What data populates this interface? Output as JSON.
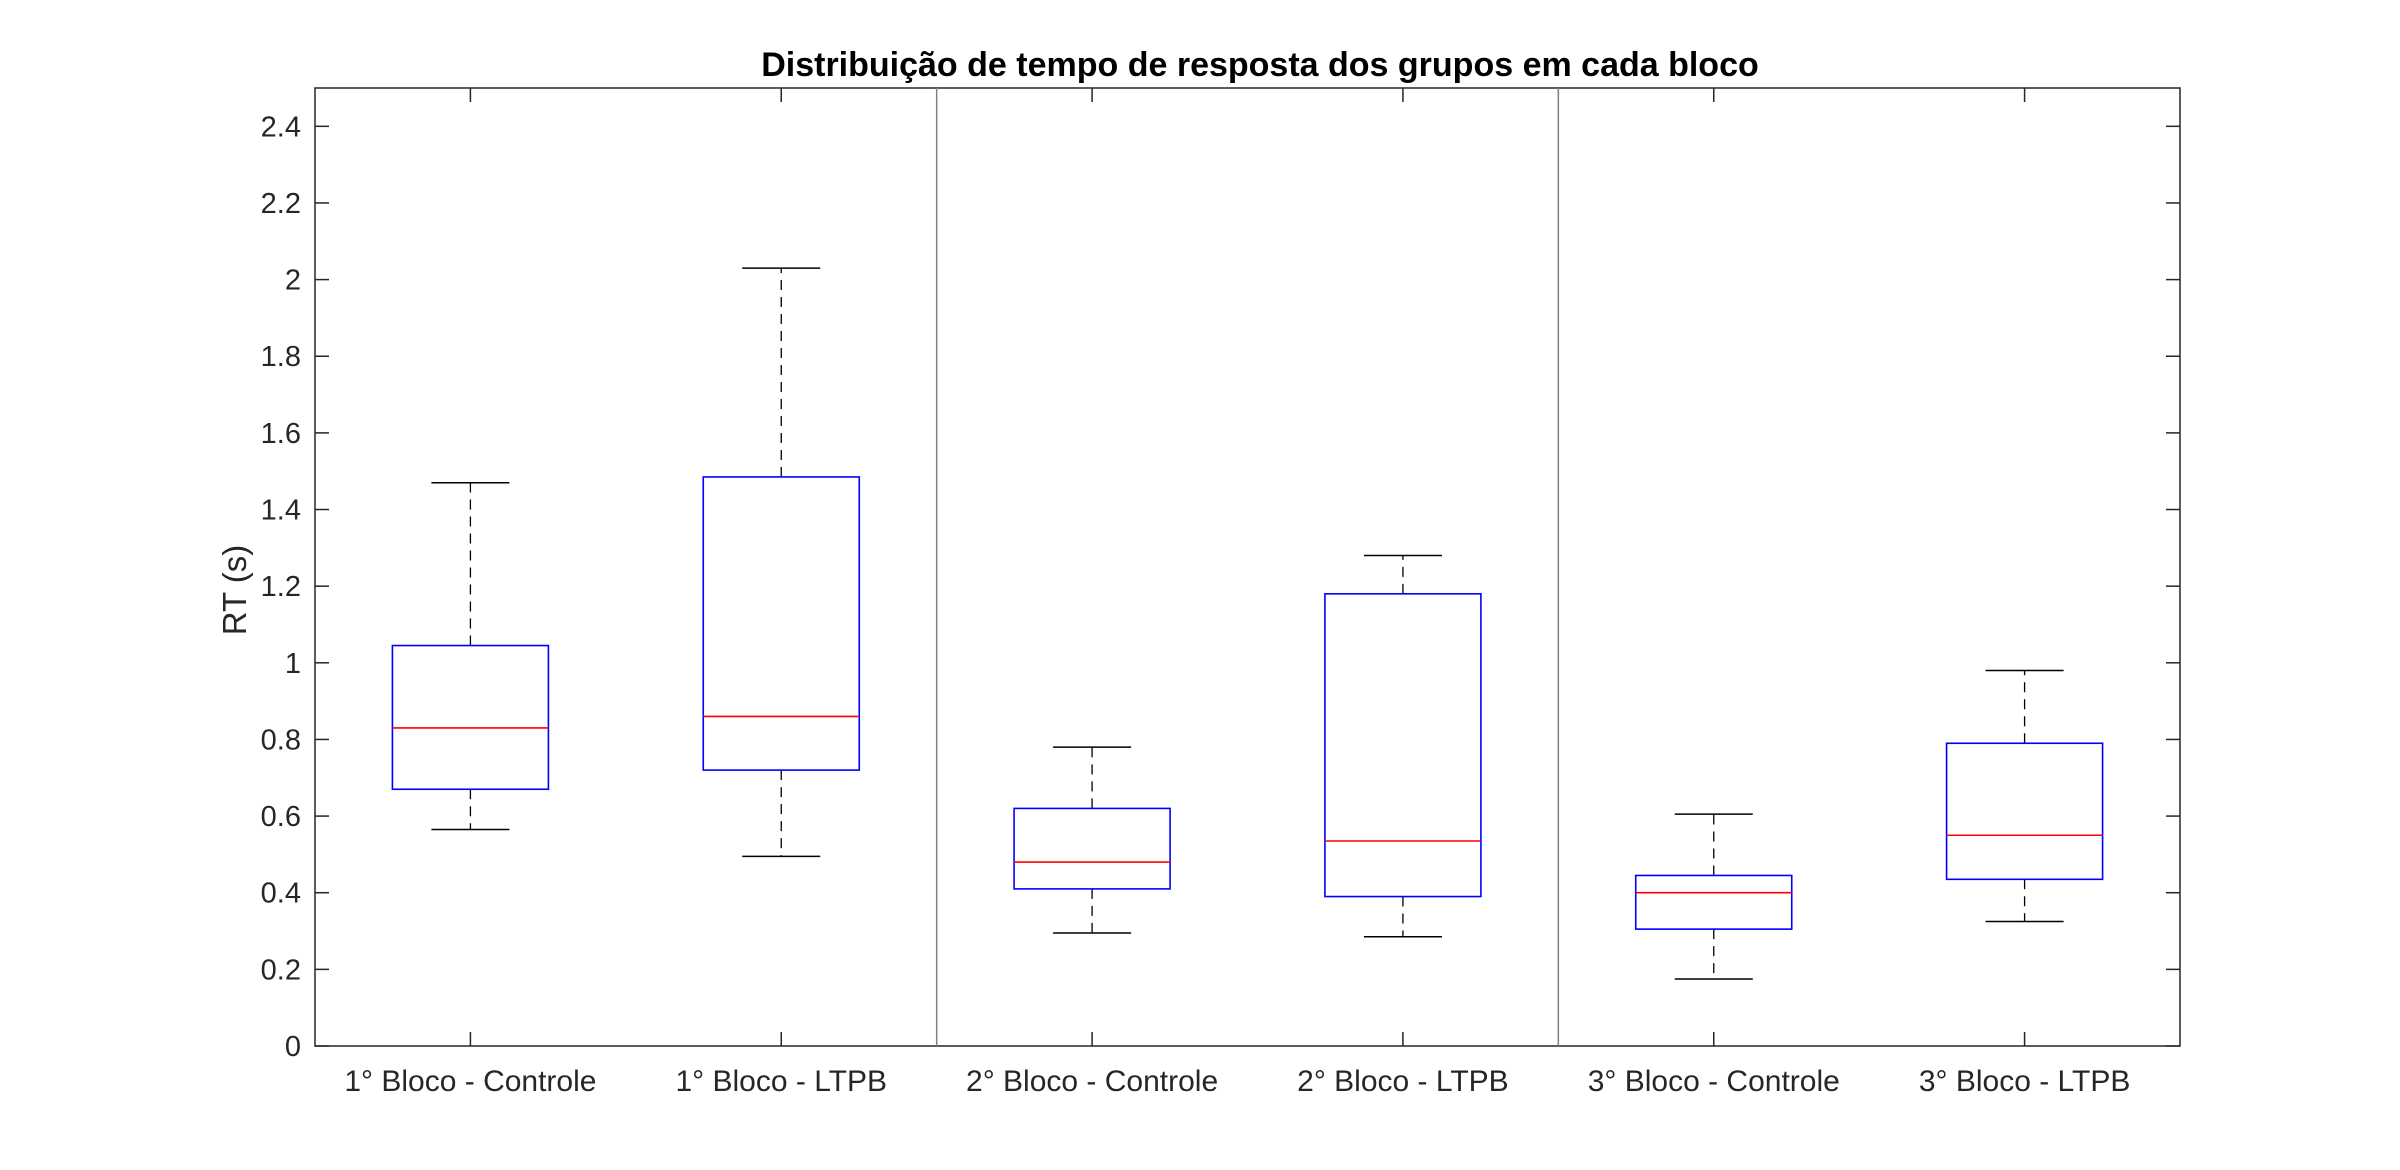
{
  "chart_data": {
    "type": "box",
    "title": "Distribuição de tempo de resposta dos grupos em cada bloco",
    "xlabel": "",
    "ylabel": "RT (s)",
    "ylim": [
      0,
      2.5
    ],
    "yticks": [
      "0",
      "0.2",
      "0.4",
      "0.6",
      "0.8",
      "1",
      "1.2",
      "1.4",
      "1.6",
      "1.8",
      "2",
      "2.2",
      "2.4"
    ],
    "grid": false,
    "categories": [
      "1° Bloco - Controle",
      "1° Bloco - LTPB",
      "2° Bloco - Controle",
      "2° Bloco - LTPB",
      "3° Bloco - Controle",
      "3° Bloco - LTPB"
    ],
    "boxes": [
      {
        "min": 0.565,
        "q1": 0.67,
        "median": 0.83,
        "q3": 1.045,
        "max": 1.47
      },
      {
        "min": 0.495,
        "q1": 0.72,
        "median": 0.86,
        "q3": 1.485,
        "max": 2.03
      },
      {
        "min": 0.295,
        "q1": 0.41,
        "median": 0.48,
        "q3": 0.62,
        "max": 0.78
      },
      {
        "min": 0.285,
        "q1": 0.39,
        "median": 0.535,
        "q3": 1.18,
        "max": 1.28
      },
      {
        "min": 0.175,
        "q1": 0.305,
        "median": 0.4,
        "q3": 0.445,
        "max": 0.605
      },
      {
        "min": 0.325,
        "q1": 0.435,
        "median": 0.55,
        "q3": 0.79,
        "max": 0.98
      }
    ],
    "block_separators_after": [
      2,
      4
    ],
    "colors": {
      "box": "#0000ff",
      "median": "#ff0000",
      "whisker": "#000000",
      "axis": "#262626"
    }
  }
}
